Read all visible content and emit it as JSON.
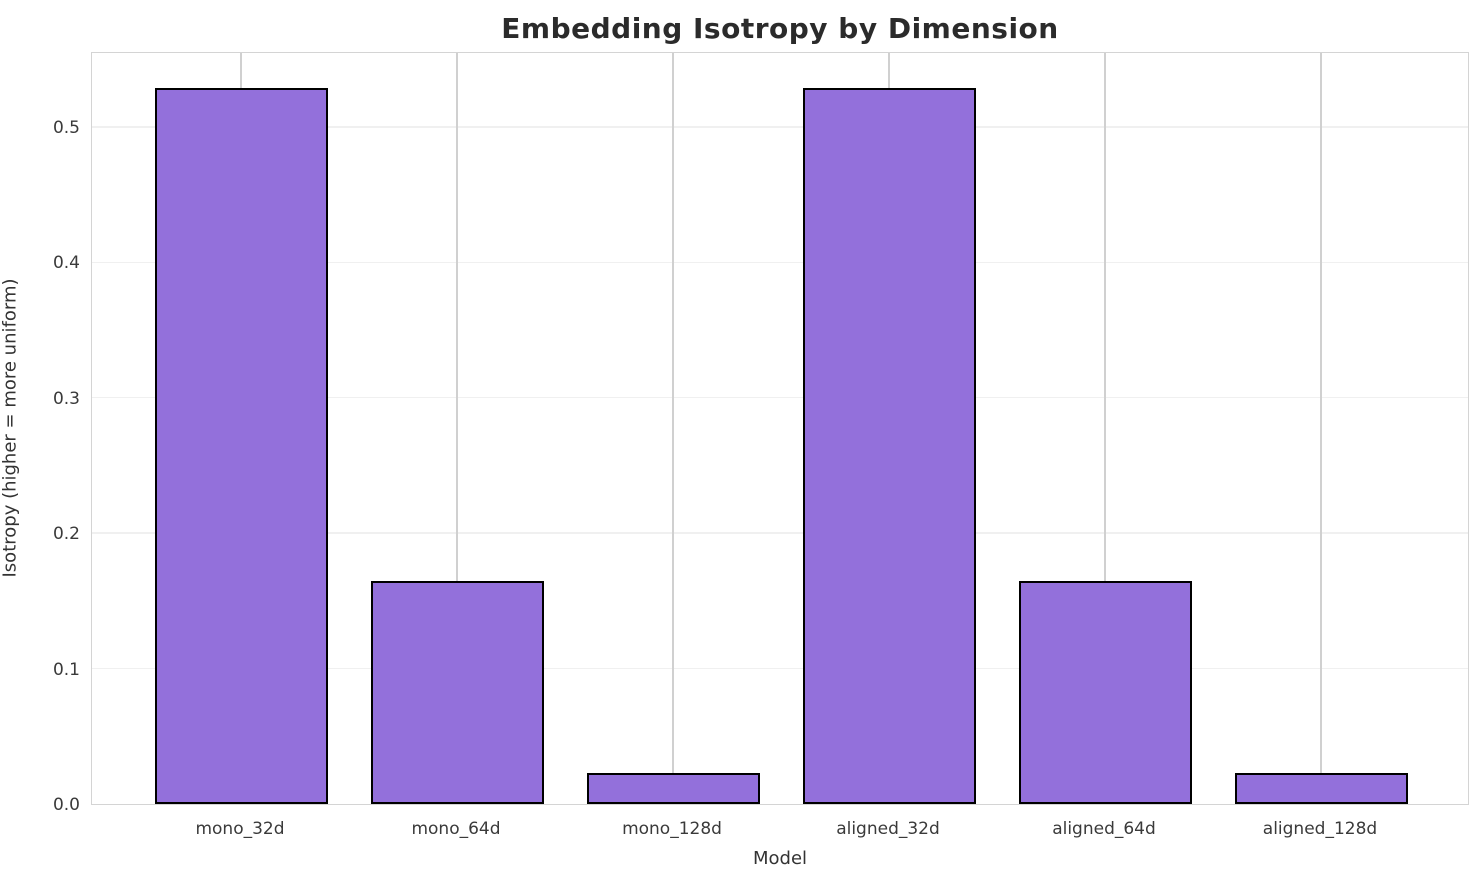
{
  "chart_data": {
    "type": "bar",
    "title": "Embedding Isotropy by Dimension",
    "xlabel": "Model",
    "ylabel": "Isotropy (higher = more uniform)",
    "categories": [
      "mono_32d",
      "mono_64d",
      "mono_128d",
      "aligned_32d",
      "aligned_64d",
      "aligned_128d"
    ],
    "values": [
      0.529,
      0.165,
      0.023,
      0.529,
      0.165,
      0.023
    ],
    "ytick_labels": [
      "0.0",
      "0.1",
      "0.2",
      "0.3",
      "0.4",
      "0.5"
    ],
    "yticks": [
      0.0,
      0.1,
      0.2,
      0.3,
      0.4,
      0.5
    ],
    "ylim": [
      0,
      0.556
    ],
    "grid": true,
    "legend": "none",
    "colors": {
      "bar_fill": "#9370DB",
      "bar_edge": "#000000",
      "h_gridline": "#f0f0f0",
      "v_gridline": "#d0d0d0",
      "spine": "#d4d4d4",
      "title_text": "#2b2b2b",
      "tick_text": "#3a3a3a",
      "axis_label_text": "#333333",
      "background": "#ffffff"
    }
  }
}
